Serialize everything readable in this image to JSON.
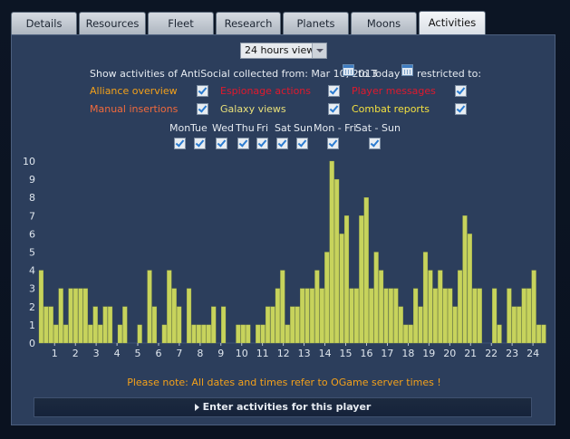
{
  "tabs": [
    "Details",
    "Resources",
    "Fleet",
    "Research",
    "Planets",
    "Moons",
    "Activities"
  ],
  "active_tab": "Activities",
  "view_select": {
    "value": "24 hours view"
  },
  "filter": {
    "prefix": "Show activities of AntiSocial collected from: Mar 10, 2013",
    "to_today": "to Today",
    "restricted": "restricted to:"
  },
  "options": [
    {
      "label": "Alliance overview",
      "color": "#f4a11a",
      "checked": true
    },
    {
      "label": "Espionage actions",
      "color": "#e0192d",
      "checked": true
    },
    {
      "label": "Player messages",
      "color": "#e0192d",
      "checked": true
    },
    {
      "label": "Manual insertions",
      "color": "#f26a3c",
      "checked": true
    },
    {
      "label": "Galaxy views",
      "color": "#e8e07a",
      "checked": true
    },
    {
      "label": "Combat reports",
      "color": "#f2e040",
      "checked": true
    }
  ],
  "days": [
    "Mon",
    "Tue",
    "Wed",
    "Thu",
    "Fri",
    "Sat",
    "Sun",
    "Mon - Fri",
    "Sat - Sun"
  ],
  "colors": {
    "bar": "#c7d35c",
    "bar_edge": "#9aa63f",
    "grid": "#3d5275",
    "tick": "#dfe6ee"
  },
  "chart_data": {
    "type": "bar",
    "y_ticks": [
      "0",
      "1",
      "2",
      "3",
      "4",
      "5",
      "6",
      "7",
      "8",
      "9",
      "10"
    ],
    "x_ticks": [
      "1",
      "2",
      "3",
      "4",
      "5",
      "6",
      "7",
      "8",
      "9",
      "10",
      "11",
      "12",
      "13",
      "14",
      "15",
      "16",
      "17",
      "18",
      "19",
      "20",
      "21",
      "22",
      "23",
      "24"
    ],
    "ylim": [
      0,
      10
    ],
    "values": [
      4,
      2,
      2,
      1,
      3,
      1,
      3,
      3,
      3,
      3,
      1,
      2,
      1,
      2,
      2,
      0,
      1,
      2,
      0,
      0,
      1,
      0,
      4,
      2,
      0,
      1,
      4,
      3,
      2,
      0,
      3,
      1,
      1,
      1,
      1,
      2,
      0,
      2,
      0,
      0,
      1,
      1,
      1,
      0,
      1,
      1,
      2,
      2,
      3,
      4,
      1,
      2,
      2,
      3,
      3,
      3,
      4,
      3,
      5,
      10,
      9,
      6,
      7,
      3,
      3,
      7,
      8,
      3,
      5,
      4,
      3,
      3,
      3,
      2,
      1,
      1,
      3,
      2,
      5,
      4,
      3,
      4,
      3,
      3,
      2,
      4,
      7,
      6,
      3,
      3,
      0,
      0,
      3,
      1,
      0,
      3,
      2,
      2,
      3,
      3,
      4,
      1,
      1
    ],
    "bar_start_hour": 0,
    "bars_per_hour": 4.3
  },
  "note": "Please note: All dates and times refer to OGame server times !",
  "enter_button": "Enter activities for this player"
}
